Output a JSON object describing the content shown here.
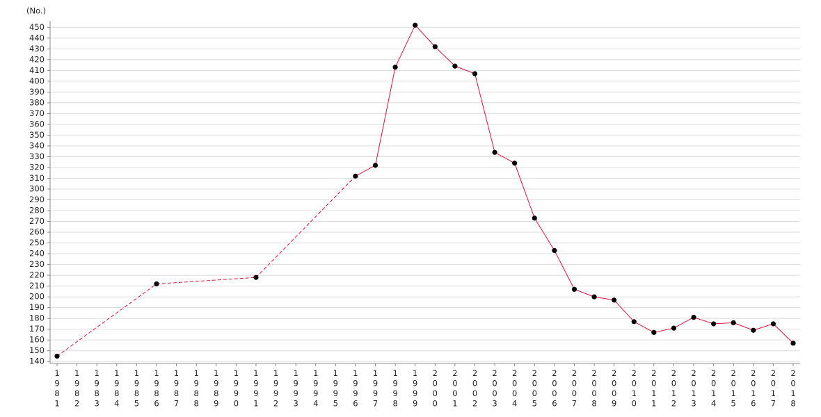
{
  "chart_data": {
    "type": "line",
    "y_label": "(No.)",
    "x": [
      1981,
      1986,
      1991,
      1996,
      1997,
      1998,
      1999,
      2000,
      2001,
      2002,
      2003,
      2004,
      2005,
      2006,
      2007,
      2008,
      2009,
      2010,
      2011,
      2012,
      2013,
      2014,
      2015,
      2016,
      2017,
      2018
    ],
    "series": [
      {
        "color": "#e0103c",
        "marker_color": "#000000",
        "values": [
          145,
          212,
          218,
          312,
          322,
          413,
          452,
          432,
          414,
          407,
          334,
          324,
          273,
          243,
          207,
          200,
          197,
          177,
          167,
          171,
          181,
          175,
          176,
          169,
          175,
          157
        ]
      }
    ],
    "xlim": [
      1980.65,
      2018.35
    ],
    "xticks": [
      1981,
      1982,
      1983,
      1984,
      1985,
      1986,
      1987,
      1988,
      1989,
      1990,
      1991,
      1992,
      1993,
      1994,
      1995,
      1996,
      1997,
      1998,
      1999,
      2000,
      2001,
      2002,
      2003,
      2004,
      2005,
      2006,
      2007,
      2008,
      2009,
      2010,
      2011,
      2012,
      2013,
      2014,
      2015,
      2016,
      2017,
      2018
    ],
    "ylim": [
      138.2,
      456
    ],
    "yticks": [
      140,
      150,
      160,
      170,
      180,
      190,
      200,
      210,
      220,
      230,
      240,
      250,
      260,
      270,
      280,
      290,
      300,
      310,
      320,
      330,
      340,
      350,
      360,
      370,
      380,
      390,
      400,
      410,
      420,
      430,
      440,
      450
    ],
    "grid": true
  }
}
